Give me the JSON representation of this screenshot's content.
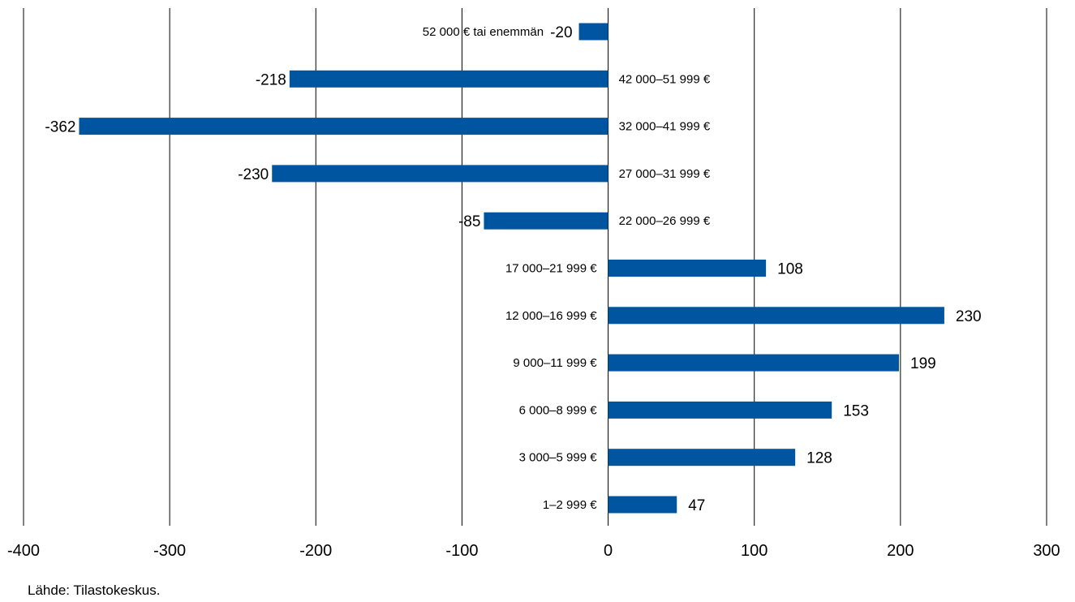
{
  "chart_data": {
    "type": "bar",
    "orientation": "horizontal",
    "categories": [
      "52 000 € tai enemmän",
      "42 000–51 999 €",
      "32 000–41 999 €",
      "27 000–31 999 €",
      "22 000–26 999 €",
      "17 000–21 999 €",
      "12 000–16 999 €",
      "9 000–11 999 €",
      "6 000–8 999 €",
      "3 000–5 999 €",
      "1–2 999 €"
    ],
    "values": [
      -20,
      -218,
      -362,
      -230,
      -85,
      108,
      230,
      199,
      153,
      128,
      47
    ],
    "value_labels": [
      "-20",
      "-218",
      "-362",
      "-230",
      "-85",
      "108",
      "230",
      "199",
      "153",
      "128",
      "47"
    ],
    "xlim": [
      -400,
      300
    ],
    "xticks": [
      -400,
      -300,
      -200,
      -100,
      0,
      100,
      200,
      300
    ],
    "xtick_labels": [
      "-400",
      "-300",
      "-200",
      "-100",
      "0",
      "100",
      "200",
      "300"
    ],
    "grid": "vertical",
    "bar_color": "#0055a0",
    "title": "",
    "xlabel": "",
    "ylabel": ""
  },
  "source": "Lähde: Tilastokeskus."
}
